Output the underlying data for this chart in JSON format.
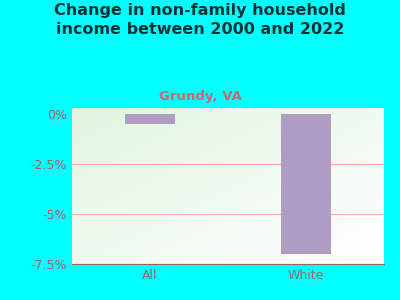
{
  "title": "Change in non-family household\nincome between 2000 and 2022",
  "subtitle": "Grundy, VA",
  "categories": [
    "All",
    "White"
  ],
  "values": [
    -0.5,
    -7.0
  ],
  "bar_color": "#b09dc4",
  "title_color": "#003333",
  "subtitle_color": "#cc6677",
  "background_color": "#00ffff",
  "ylim": [
    -7.5,
    0.3
  ],
  "yticks": [
    0,
    -2.5,
    -5,
    -7.5
  ],
  "ytick_labels": [
    "0%",
    "-2.5%",
    "-5%",
    "-7.5%"
  ],
  "grid_color": "#ffaaaa",
  "tick_color": "#996666",
  "title_fontsize": 11.5,
  "subtitle_fontsize": 9.5,
  "axis_fontsize": 9
}
